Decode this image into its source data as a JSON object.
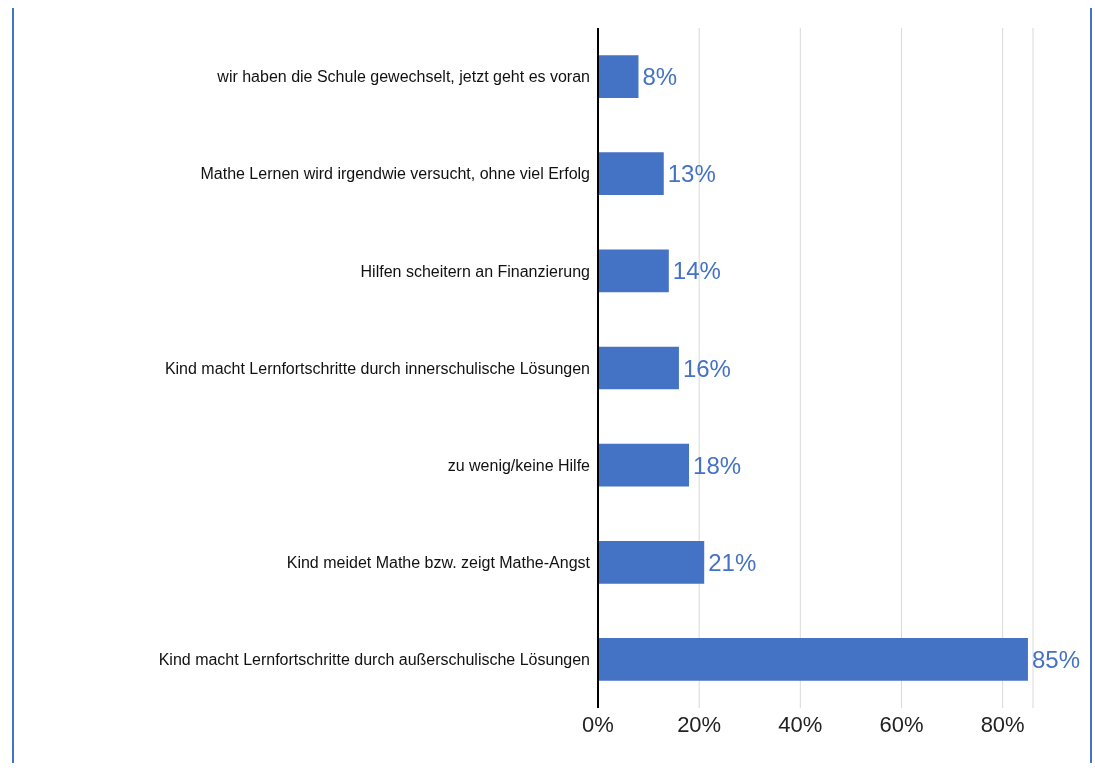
{
  "chart_data": {
    "type": "bar",
    "orientation": "horizontal",
    "categories": [
      "wir haben die Schule gewechselt, jetzt geht es voran",
      "Mathe Lernen wird irgendwie versucht, ohne viel Erfolg",
      "Hilfen scheitern an Finanzierung",
      "Kind macht Lernfortschritte durch innerschulische Lösungen",
      "zu wenig/keine Hilfe",
      "Kind meidet Mathe bzw. zeigt Mathe-Angst",
      "Kind macht Lernfortschritte durch außerschulische Lösungen"
    ],
    "values": [
      8,
      13,
      14,
      16,
      18,
      21,
      85
    ],
    "value_labels": [
      "8%",
      "13%",
      "14%",
      "16%",
      "18%",
      "21%",
      "85%"
    ],
    "color": "#4472c4",
    "xlim": [
      0,
      86
    ],
    "xticks": [
      {
        "value": 0,
        "label": "0%"
      },
      {
        "value": 20,
        "label": "20%"
      },
      {
        "value": 40,
        "label": "40%"
      },
      {
        "value": 60,
        "label": "60%"
      },
      {
        "value": 80,
        "label": "80%"
      }
    ],
    "grid": "x"
  }
}
